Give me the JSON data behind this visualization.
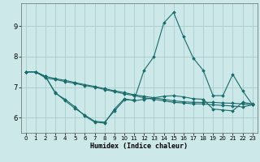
{
  "xlabel": "Humidex (Indice chaleur)",
  "bg_color": "#cce8e8",
  "grid_color": "#aacccc",
  "line_color": "#1a6b6b",
  "xlim": [
    -0.5,
    23.5
  ],
  "ylim": [
    5.5,
    9.75
  ],
  "yticks": [
    6,
    7,
    8,
    9
  ],
  "xticks": [
    0,
    1,
    2,
    3,
    4,
    5,
    6,
    7,
    8,
    9,
    10,
    11,
    12,
    13,
    14,
    15,
    16,
    17,
    18,
    19,
    20,
    21,
    22,
    23
  ],
  "lines": [
    [
      7.5,
      7.5,
      7.35,
      6.8,
      6.6,
      6.35,
      6.05,
      5.85,
      5.82,
      6.28,
      6.62,
      6.55,
      6.6,
      6.65,
      6.7,
      6.72,
      6.68,
      6.62,
      6.6,
      6.28,
      6.25,
      6.22,
      6.5,
      6.45
    ],
    [
      7.5,
      7.5,
      7.35,
      7.28,
      7.22,
      7.15,
      7.08,
      7.02,
      6.95,
      6.88,
      6.82,
      6.75,
      6.7,
      6.65,
      6.6,
      6.55,
      6.52,
      6.5,
      6.5,
      6.5,
      6.48,
      6.47,
      6.45,
      6.42
    ],
    [
      7.5,
      7.5,
      7.3,
      7.25,
      7.18,
      7.12,
      7.05,
      7.0,
      6.92,
      6.85,
      6.78,
      6.72,
      6.65,
      6.6,
      6.55,
      6.5,
      6.48,
      6.45,
      6.45,
      6.42,
      6.4,
      6.38,
      6.35,
      6.42
    ],
    [
      7.5,
      7.5,
      7.35,
      6.82,
      6.55,
      6.3,
      6.08,
      5.88,
      5.85,
      6.22,
      6.58,
      6.58,
      7.55,
      8.0,
      9.1,
      9.45,
      8.65,
      7.95,
      7.55,
      6.72,
      6.72,
      7.42,
      6.88,
      6.42
    ]
  ]
}
